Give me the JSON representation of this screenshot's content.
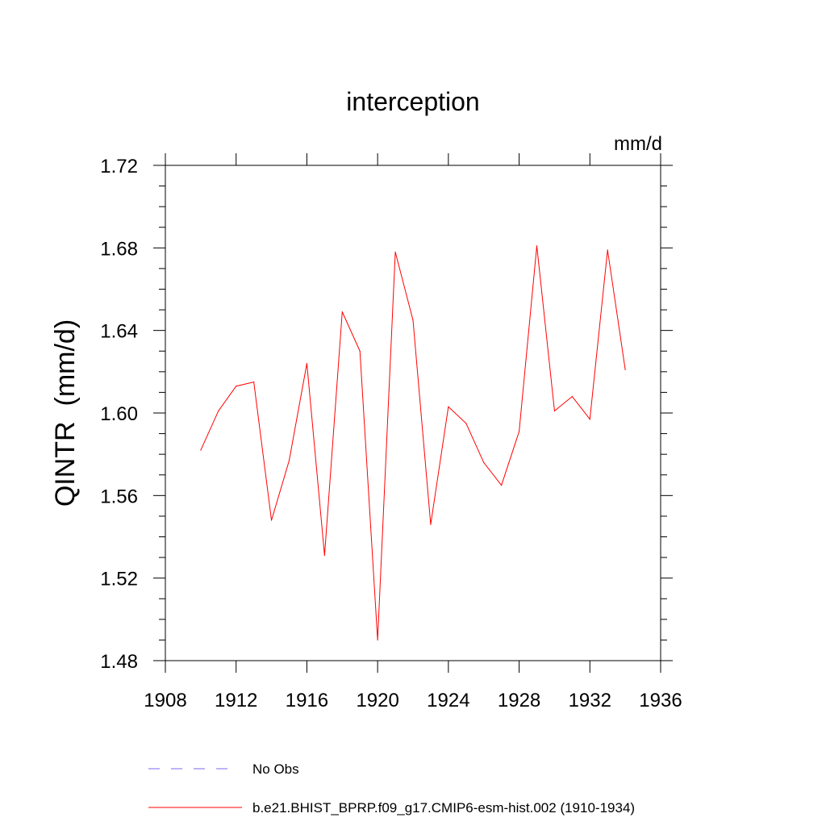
{
  "chart_data": {
    "type": "line",
    "title": "interception",
    "units_label": "mm/d",
    "ylabel": "QINTR  (mm/d)",
    "xlabel": "",
    "xlim": [
      1908,
      1936
    ],
    "ylim": [
      1.48,
      1.72
    ],
    "x_ticks": [
      1908,
      1912,
      1916,
      1920,
      1924,
      1928,
      1932,
      1936
    ],
    "x_tick_labels": [
      "1908",
      "1912",
      "1916",
      "1920",
      "1924",
      "1928",
      "1932",
      "1936"
    ],
    "y_ticks": [
      1.48,
      1.52,
      1.56,
      1.6,
      1.64,
      1.68,
      1.72
    ],
    "y_tick_labels": [
      "1.48",
      "1.52",
      "1.56",
      "1.60",
      "1.64",
      "1.68",
      "1.72"
    ],
    "grid": false,
    "legend_position": "bottom",
    "series": [
      {
        "name": "b.e21.BHIST_BPRP.f09_g17.CMIP6-esm-hist.002 (1910-1934)",
        "color": "#ff0000",
        "style": "solid",
        "x": [
          1910,
          1911,
          1912,
          1913,
          1914,
          1915,
          1916,
          1917,
          1918,
          1919,
          1920,
          1921,
          1922,
          1923,
          1924,
          1925,
          1926,
          1927,
          1928,
          1929,
          1930,
          1931,
          1932,
          1933,
          1934
        ],
        "values": [
          1.582,
          1.601,
          1.613,
          1.615,
          1.548,
          1.577,
          1.624,
          1.531,
          1.649,
          1.63,
          1.49,
          1.678,
          1.645,
          1.546,
          1.603,
          1.595,
          1.576,
          1.565,
          1.591,
          1.681,
          1.601,
          1.608,
          1.597,
          1.679,
          1.621
        ]
      },
      {
        "name": "No Obs",
        "color": "#7b68ee",
        "style": "dashed",
        "x": [],
        "values": []
      }
    ]
  }
}
